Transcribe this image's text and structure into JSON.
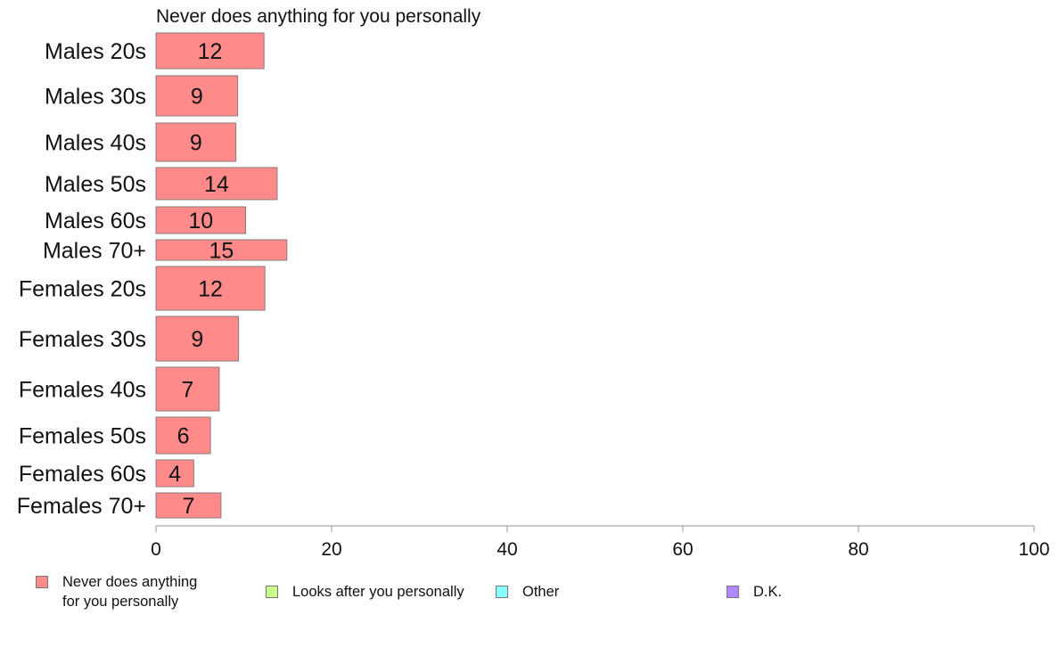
{
  "chart_data": {
    "type": "bar",
    "orientation": "horizontal",
    "title": "Never does anything for you personally",
    "categories": [
      "Males 20s",
      "Males 30s",
      "Males 40s",
      "Males 50s",
      "Males 60s",
      "Males 70+",
      "Females 20s",
      "Females 30s",
      "Females 40s",
      "Females 50s",
      "Females 60s",
      "Females 70+"
    ],
    "series": [
      {
        "name": "Never does anything for you personally",
        "values": [
          12.3,
          9.3,
          9.1,
          13.8,
          10.2,
          14.9,
          12.4,
          9.4,
          7.2,
          6.2,
          4.3,
          7.4
        ],
        "data_labels": [
          "12",
          "9",
          "9",
          "14",
          "10",
          "15",
          "12",
          "9",
          "7",
          "6",
          "4",
          "7"
        ]
      }
    ],
    "xlim": [
      0,
      100
    ],
    "xticks": [
      0,
      20,
      40,
      60,
      80,
      100
    ],
    "grid": false,
    "legend_placement": "bottom",
    "legend": [
      {
        "lines": [
          "Never does anything",
          "for you personally"
        ],
        "color": "#ff8a8a"
      },
      {
        "lines": [
          "Looks after you personally"
        ],
        "color": "#ccff88"
      },
      {
        "lines": [
          "Other"
        ],
        "color": "#88ffff"
      },
      {
        "lines": [
          "D.K."
        ],
        "color": "#b088ff"
      }
    ]
  }
}
